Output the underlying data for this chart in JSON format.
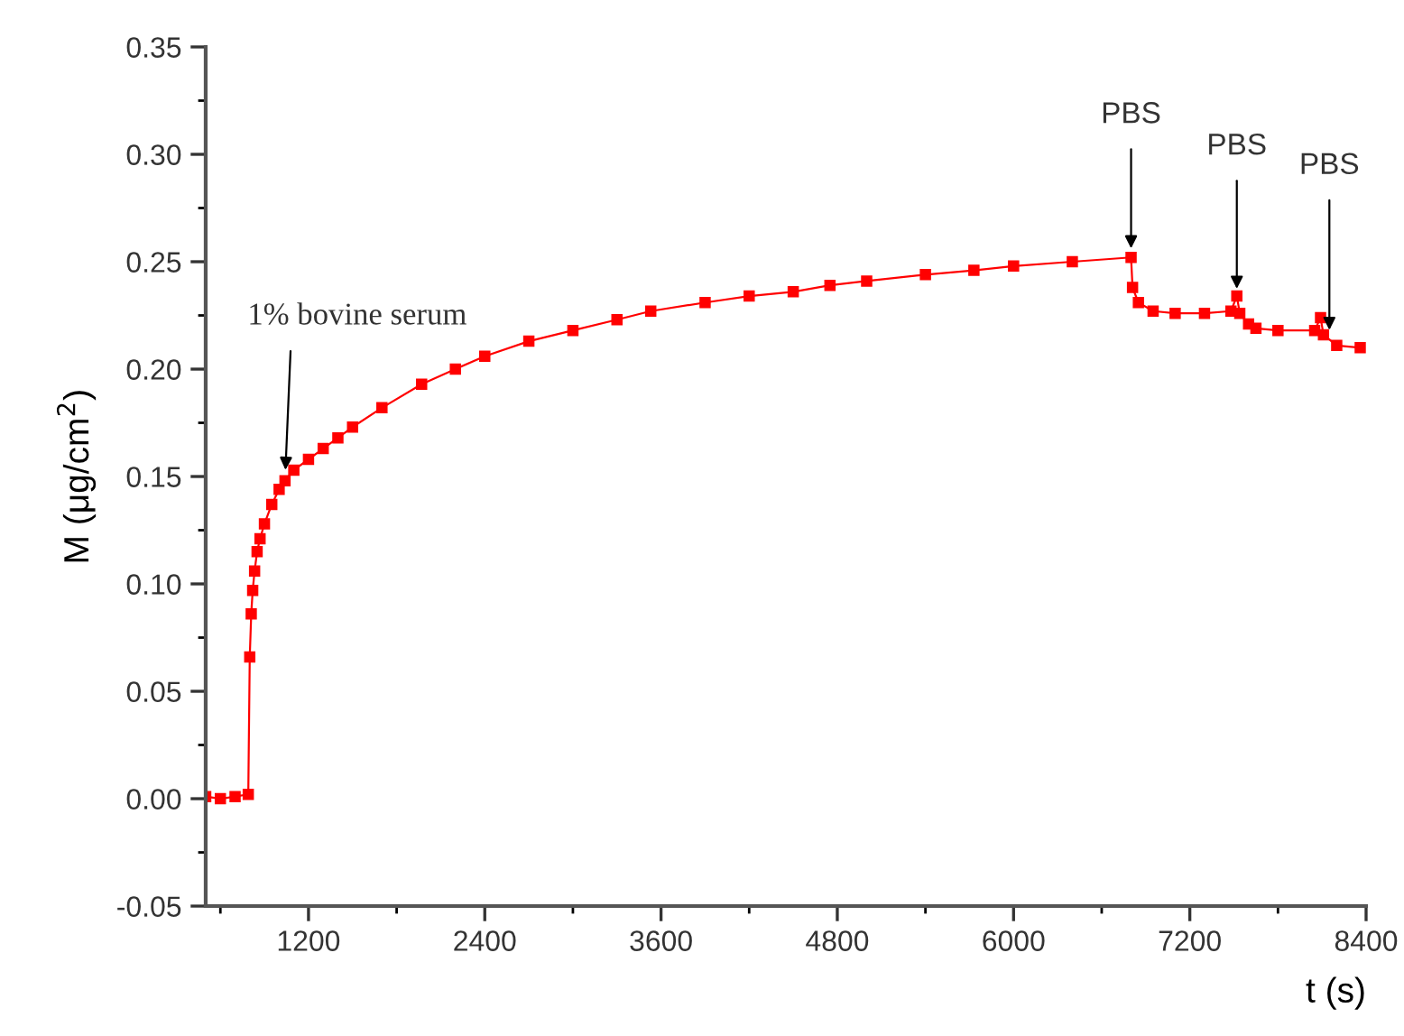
{
  "chart_data": {
    "type": "line",
    "xlabel": "t (s)",
    "ylabel": "M (μg/cm$^{2}$)",
    "xlim": [
      500,
      8400
    ],
    "xticks": [
      1200,
      2400,
      3600,
      4800,
      6000,
      7200,
      8400
    ],
    "ylim": [
      -0.05,
      0.35
    ],
    "yticks": [
      {
        "value": -0.05,
        "label": "-0.05"
      },
      {
        "value": 0.0,
        "label": "0.00"
      },
      {
        "value": 0.05,
        "label": "0.05"
      },
      {
        "value": 0.1,
        "label": "0.10"
      },
      {
        "value": 0.15,
        "label": "0.15"
      },
      {
        "value": 0.2,
        "label": "0.20"
      },
      {
        "value": 0.25,
        "label": "0.25"
      },
      {
        "value": 0.3,
        "label": "0.30"
      },
      {
        "value": 0.35,
        "label": "0.35"
      }
    ],
    "grid": false,
    "marker": "square",
    "line_style": "solid",
    "series": [
      {
        "color": "#ff0000",
        "x": [
          500,
          600,
          700,
          790,
          800,
          810,
          820,
          833,
          850,
          870,
          900,
          950,
          1000,
          1040,
          1100,
          1200,
          1300,
          1400,
          1500,
          1700,
          1970,
          2200,
          2400,
          2700,
          3000,
          3300,
          3530,
          3900,
          4200,
          4500,
          4750,
          5000,
          5400,
          5730,
          6000,
          6400,
          6800,
          6810,
          6850,
          6950,
          7100,
          7300,
          7480,
          7520,
          7540,
          7600,
          7650,
          7800,
          8050,
          8090,
          8110,
          8200,
          8360
        ],
        "values": [
          0.001,
          0.0,
          0.001,
          0.002,
          0.066,
          0.086,
          0.097,
          0.106,
          0.115,
          0.121,
          0.128,
          0.137,
          0.144,
          0.148,
          0.153,
          0.158,
          0.163,
          0.168,
          0.173,
          0.182,
          0.193,
          0.2,
          0.206,
          0.213,
          0.218,
          0.223,
          0.227,
          0.231,
          0.234,
          0.236,
          0.239,
          0.241,
          0.244,
          0.246,
          0.248,
          0.25,
          0.252,
          0.238,
          0.231,
          0.227,
          0.226,
          0.226,
          0.227,
          0.234,
          0.226,
          0.221,
          0.219,
          0.218,
          0.218,
          0.224,
          0.216,
          0.211,
          0.21
        ]
      }
    ],
    "annotations": [
      {
        "text": "1% bovine serum",
        "x": 1040,
        "y": 0.148
      },
      {
        "text": "PBS",
        "x": 6800,
        "y": 0.252
      },
      {
        "text": "PBS",
        "x": 7520,
        "y": 0.234
      },
      {
        "text": "PBS",
        "x": 8150,
        "y": 0.214
      }
    ]
  }
}
